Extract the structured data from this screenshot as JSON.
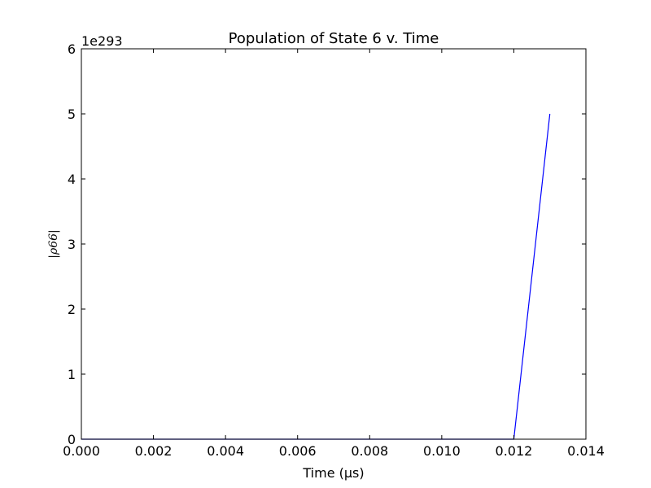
{
  "chart_data": {
    "type": "line",
    "title": "Population of State 6 v. Time",
    "xlabel": "Time (μs)",
    "ylabel": "|ρ66|",
    "y_offset_label": "1e293",
    "xlim": [
      0,
      0.014
    ],
    "ylim": [
      0,
      6
    ],
    "x_ticks": [
      "0.000",
      "0.002",
      "0.004",
      "0.006",
      "0.008",
      "0.010",
      "0.012",
      "0.014"
    ],
    "y_ticks": [
      "0",
      "1",
      "2",
      "3",
      "4",
      "5",
      "6"
    ],
    "grid": false,
    "series": [
      {
        "color": "#0000ff",
        "x": [
          0,
          0.002,
          0.004,
          0.006,
          0.008,
          0.01,
          0.012,
          0.013
        ],
        "y": [
          0,
          0,
          0,
          0,
          0,
          0,
          0,
          5.0
        ]
      }
    ]
  }
}
